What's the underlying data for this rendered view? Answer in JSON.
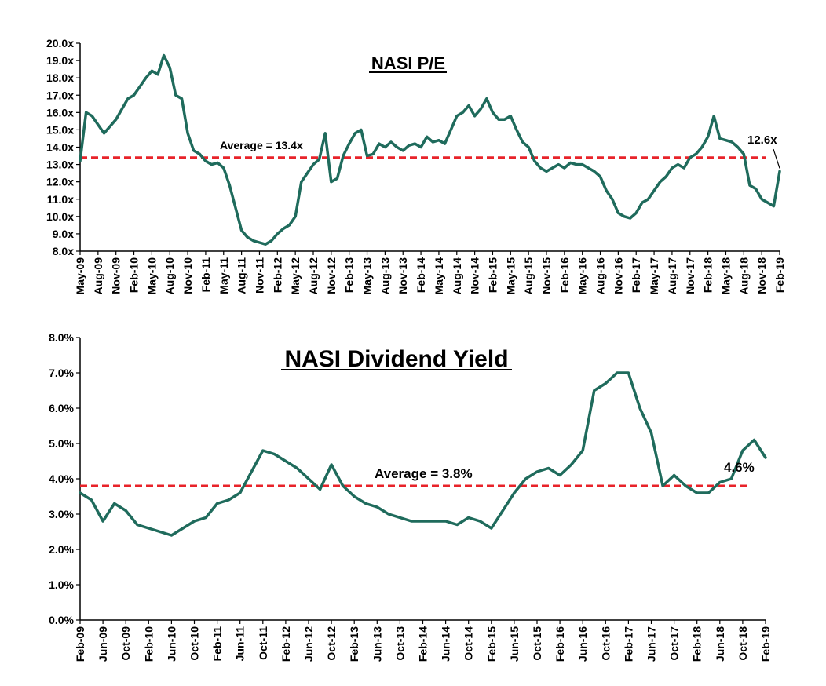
{
  "colors": {
    "series": "#1f6b5c",
    "average": "#e8232a",
    "axis": "#000000"
  },
  "chart_data": [
    {
      "type": "line",
      "title": "NASI P/E",
      "xlabel": "",
      "ylabel": "",
      "ylim": [
        8.0,
        20.0
      ],
      "y_ticks": [
        "8.0x",
        "9.0x",
        "10.0x",
        "11.0x",
        "12.0x",
        "13.0x",
        "14.0x",
        "15.0x",
        "16.0x",
        "17.0x",
        "18.0x",
        "19.0x",
        "20.0x"
      ],
      "x_ticks": [
        "May-09",
        "Aug-09",
        "Nov-09",
        "Feb-10",
        "May-10",
        "Aug-10",
        "Nov-10",
        "Feb-11",
        "May-11",
        "Aug-11",
        "Nov-11",
        "Feb-12",
        "May-12",
        "Aug-12",
        "Nov-12",
        "Feb-13",
        "May-13",
        "Aug-13",
        "Nov-13",
        "Feb-14",
        "May-14",
        "Aug-14",
        "Nov-14",
        "Feb-15",
        "May-15",
        "Aug-15",
        "Nov-15",
        "Feb-16",
        "May-16",
        "Aug-16",
        "Nov-16",
        "Feb-17",
        "May-17",
        "Aug-17",
        "Nov-17",
        "Feb-18",
        "May-18",
        "Aug-18",
        "Nov-18",
        "Feb-19"
      ],
      "average": {
        "value": 13.4,
        "label": "Average = 13.4x"
      },
      "last_label": "12.6x",
      "series": [
        {
          "x": [
            "May-09",
            "Jun-09",
            "Jul-09",
            "Aug-09",
            "Sep-09",
            "Oct-09",
            "Nov-09",
            "Dec-09",
            "Jan-10",
            "Feb-10",
            "Mar-10",
            "Apr-10",
            "May-10",
            "Jun-10",
            "Jul-10",
            "Aug-10",
            "Sep-10",
            "Oct-10",
            "Nov-10",
            "Dec-10",
            "Jan-11",
            "Feb-11",
            "Mar-11",
            "Apr-11",
            "May-11",
            "Jun-11",
            "Jul-11",
            "Aug-11",
            "Sep-11",
            "Oct-11",
            "Nov-11",
            "Dec-11",
            "Jan-12",
            "Feb-12",
            "Mar-12",
            "Apr-12",
            "May-12",
            "Jun-12",
            "Jul-12",
            "Aug-12",
            "Sep-12",
            "Oct-12",
            "Nov-12",
            "Dec-12",
            "Jan-13",
            "Feb-13",
            "Mar-13",
            "Apr-13",
            "May-13",
            "Jun-13",
            "Jul-13",
            "Aug-13",
            "Sep-13",
            "Oct-13",
            "Nov-13",
            "Dec-13",
            "Jan-14",
            "Feb-14",
            "Mar-14",
            "Apr-14",
            "May-14",
            "Jun-14",
            "Jul-14",
            "Aug-14",
            "Sep-14",
            "Oct-14",
            "Nov-14",
            "Dec-14",
            "Jan-15",
            "Feb-15",
            "Mar-15",
            "Apr-15",
            "May-15",
            "Jun-15",
            "Jul-15",
            "Aug-15",
            "Sep-15",
            "Oct-15",
            "Nov-15",
            "Dec-15",
            "Jan-16",
            "Feb-16",
            "Mar-16",
            "Apr-16",
            "May-16",
            "Jun-16",
            "Jul-16",
            "Aug-16",
            "Sep-16",
            "Oct-16",
            "Nov-16",
            "Dec-16",
            "Jan-17",
            "Feb-17",
            "Mar-17",
            "Apr-17",
            "May-17",
            "Jun-17",
            "Jul-17",
            "Aug-17",
            "Sep-17",
            "Oct-17",
            "Nov-17",
            "Dec-17",
            "Jan-18",
            "Feb-18",
            "Mar-18",
            "Apr-18",
            "May-18",
            "Jun-18",
            "Jul-18",
            "Aug-18",
            "Sep-18",
            "Oct-18",
            "Nov-18",
            "Dec-18",
            "Jan-19",
            "Feb-19"
          ],
          "values": [
            13.2,
            16.0,
            15.8,
            15.3,
            14.8,
            15.2,
            15.6,
            16.2,
            16.8,
            17.0,
            17.5,
            18.0,
            18.4,
            18.2,
            19.3,
            18.6,
            17.0,
            16.8,
            14.8,
            13.8,
            13.6,
            13.2,
            13.0,
            13.1,
            12.8,
            11.8,
            10.5,
            9.2,
            8.8,
            8.6,
            8.5,
            8.4,
            8.6,
            9.0,
            9.3,
            9.5,
            10.0,
            12.0,
            12.5,
            13.0,
            13.3,
            14.8,
            12.0,
            12.2,
            13.5,
            14.2,
            14.8,
            15.0,
            13.5,
            13.6,
            14.2,
            14.0,
            14.3,
            14.0,
            13.8,
            14.1,
            14.2,
            14.0,
            14.6,
            14.3,
            14.4,
            14.2,
            15.0,
            15.8,
            16.0,
            16.4,
            15.8,
            16.2,
            16.8,
            16.0,
            15.6,
            15.6,
            15.8,
            15.0,
            14.3,
            14.0,
            13.2,
            12.8,
            12.6,
            12.8,
            13.0,
            12.8,
            13.1,
            13.0,
            13.0,
            12.8,
            12.6,
            12.3,
            11.5,
            11.0,
            10.2,
            10.0,
            9.9,
            10.2,
            10.8,
            11.0,
            11.5,
            12.0,
            12.3,
            12.8,
            13.0,
            12.8,
            13.4,
            13.6,
            14.0,
            14.6,
            15.8,
            14.5,
            14.4,
            14.3,
            14.0,
            13.6,
            11.8,
            11.6,
            11.0,
            10.8,
            10.6,
            12.6
          ]
        }
      ]
    },
    {
      "type": "line",
      "title": "NASI Dividend Yield",
      "xlabel": "",
      "ylabel": "",
      "ylim": [
        0.0,
        8.0
      ],
      "y_ticks": [
        "0.0%",
        "1.0%",
        "2.0%",
        "3.0%",
        "4.0%",
        "5.0%",
        "6.0%",
        "7.0%",
        "8.0%"
      ],
      "x_ticks": [
        "Feb-09",
        "Jun-09",
        "Oct-09",
        "Feb-10",
        "Jun-10",
        "Oct-10",
        "Feb-11",
        "Jun-11",
        "Oct-11",
        "Feb-12",
        "Jun-12",
        "Oct-12",
        "Feb-13",
        "Jun-13",
        "Oct-13",
        "Feb-14",
        "Jun-14",
        "Oct-14",
        "Feb-15",
        "Jun-15",
        "Oct-15",
        "Feb-16",
        "Jun-16",
        "Oct-16",
        "Feb-17",
        "Jun-17",
        "Oct-17",
        "Feb-18",
        "Jun-18",
        "Oct-18",
        "Feb-19"
      ],
      "average": {
        "value": 3.8,
        "label": "Average = 3.8%"
      },
      "last_label": "4.6%",
      "series": [
        {
          "x": [
            "Feb-09",
            "Apr-09",
            "Jun-09",
            "Aug-09",
            "Oct-09",
            "Dec-09",
            "Feb-10",
            "Apr-10",
            "Jun-10",
            "Aug-10",
            "Oct-10",
            "Dec-10",
            "Feb-11",
            "Apr-11",
            "Jun-11",
            "Aug-11",
            "Oct-11",
            "Dec-11",
            "Feb-12",
            "Apr-12",
            "Jun-12",
            "Aug-12",
            "Oct-12",
            "Dec-12",
            "Feb-13",
            "Apr-13",
            "Jun-13",
            "Aug-13",
            "Oct-13",
            "Dec-13",
            "Feb-14",
            "Apr-14",
            "Jun-14",
            "Aug-14",
            "Oct-14",
            "Dec-14",
            "Feb-15",
            "Apr-15",
            "Jun-15",
            "Aug-15",
            "Oct-15",
            "Dec-15",
            "Feb-16",
            "Apr-16",
            "Jun-16",
            "Aug-16",
            "Oct-16",
            "Dec-16",
            "Feb-17",
            "Apr-17",
            "Jun-17",
            "Aug-17",
            "Oct-17",
            "Dec-17",
            "Feb-18",
            "Apr-18",
            "Jun-18",
            "Aug-18",
            "Oct-18",
            "Dec-18",
            "Feb-19"
          ],
          "values": [
            3.6,
            3.4,
            2.8,
            3.3,
            3.1,
            2.7,
            2.6,
            2.5,
            2.4,
            2.6,
            2.8,
            2.9,
            3.3,
            3.4,
            3.6,
            4.2,
            4.8,
            4.7,
            4.5,
            4.3,
            4.0,
            3.7,
            4.4,
            3.8,
            3.5,
            3.3,
            3.2,
            3.0,
            2.9,
            2.8,
            2.8,
            2.8,
            2.8,
            2.7,
            2.9,
            2.8,
            2.6,
            3.1,
            3.6,
            4.0,
            4.2,
            4.3,
            4.1,
            4.4,
            4.8,
            6.5,
            6.7,
            7.0,
            7.0,
            6.0,
            5.3,
            3.8,
            4.1,
            3.8,
            3.6,
            3.6,
            3.9,
            4.0,
            4.8,
            5.1,
            4.6
          ]
        }
      ]
    }
  ]
}
